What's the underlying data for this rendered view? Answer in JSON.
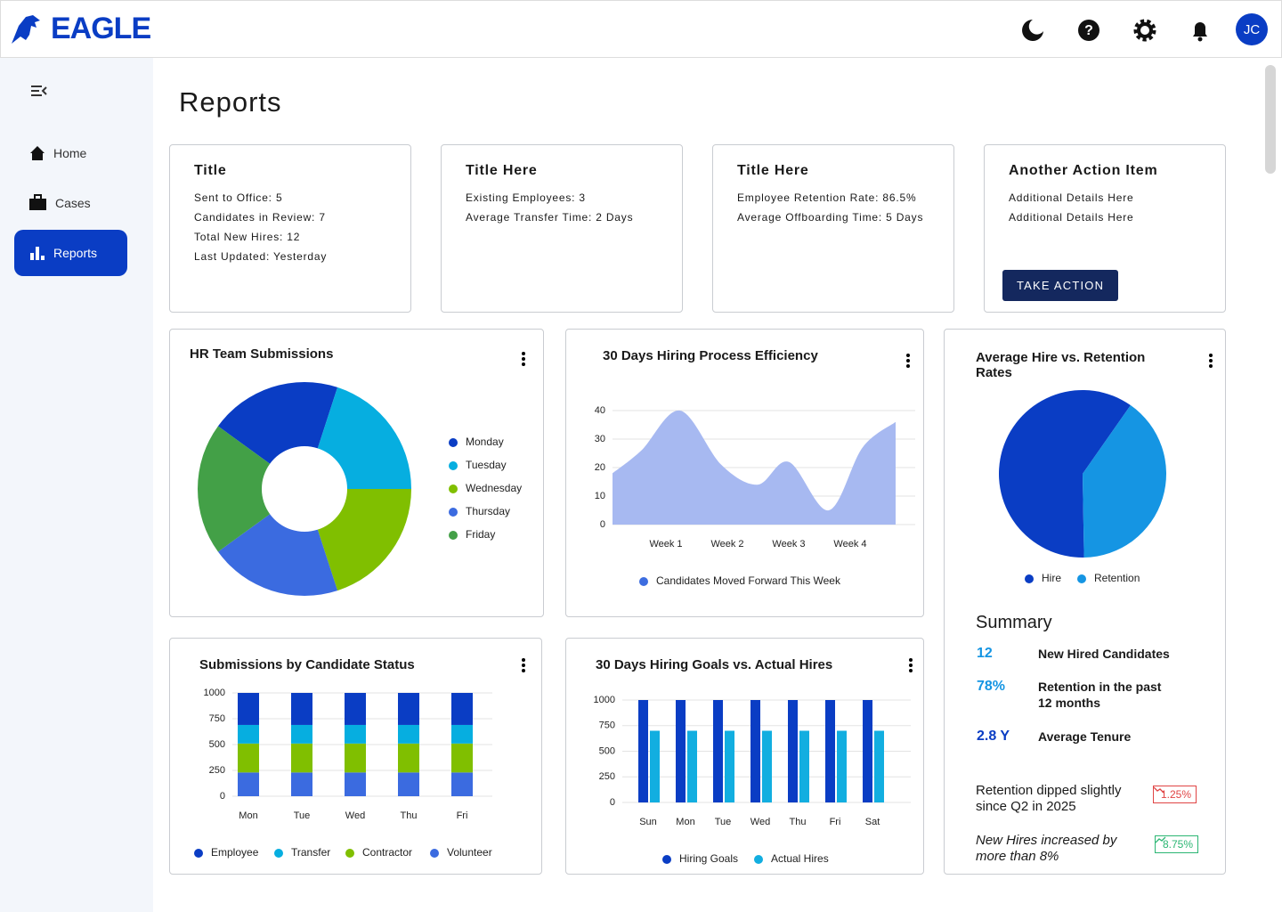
{
  "header": {
    "logo": "EAGLE",
    "avatar": "JC"
  },
  "nav": {
    "items": [
      "Home",
      "Cases",
      "Reports"
    ],
    "active": 2
  },
  "page_title": "Reports",
  "cards": [
    {
      "title": "Title",
      "lines": [
        "Sent to Office: 5",
        "Candidates in Review: 7",
        "Total New Hires: 12",
        "Last Updated: Yesterday"
      ]
    },
    {
      "title": "Title Here",
      "lines": [
        "Existing Employees: 3",
        "Average Transfer Time: 2 Days"
      ]
    },
    {
      "title": "Title Here",
      "lines": [
        "Employee Retention Rate: 86.5%",
        "Average Offboarding Time: 5 Days"
      ]
    },
    {
      "title": "Another Action Item",
      "lines": [
        "Additional Details Here",
        "Additional Details Here"
      ],
      "button": "TAKE ACTION"
    }
  ],
  "chart_data": [
    {
      "type": "donut",
      "title": "HR Team Submissions",
      "categories": [
        "Monday",
        "Tuesday",
        "Wednesday",
        "Thursday",
        "Friday"
      ],
      "values": [
        20,
        20,
        20,
        20,
        20
      ],
      "colors": [
        "#0a3dc4",
        "#06aee0",
        "#80bf00",
        "#3b6be0",
        "#43a047"
      ]
    },
    {
      "type": "area",
      "title": "30 Days Hiring Process Efficiency",
      "x": [
        0.13,
        0.6,
        1.23,
        1.9,
        2.49,
        3.0,
        3.65,
        4.2,
        4.74
      ],
      "xlim": [
        0.13,
        4.74
      ],
      "xticks": [
        {
          "value": 1,
          "label": "Week 1"
        },
        {
          "value": 2,
          "label": "Week 2"
        },
        {
          "value": 3,
          "label": "Week 3"
        },
        {
          "value": 4,
          "label": "Week 4"
        }
      ],
      "ylim": [
        0,
        40
      ],
      "yticks": [
        0,
        10,
        20,
        30,
        40
      ],
      "grid": true,
      "series": [
        {
          "name": "Candidates Moved Forward This Week",
          "color": "#a7b9f1",
          "marker_color": "#3d6de0",
          "values": [
            18,
            26,
            40,
            21,
            14,
            22,
            5,
            27,
            36
          ]
        }
      ]
    },
    {
      "type": "pie",
      "title": "Average Hire vs. Retention Rates",
      "categories": [
        "Hire",
        "Retention"
      ],
      "values": [
        60,
        40
      ],
      "colors": [
        "#0a3dc4",
        "#1595e3"
      ]
    },
    {
      "type": "stacked_bar",
      "title": "Submissions by Candidate Status",
      "categories": [
        "Mon",
        "Tue",
        "Wed",
        "Thu",
        "Fri"
      ],
      "ylim": [
        0,
        1000
      ],
      "yticks": [
        0,
        250,
        500,
        750,
        1000
      ],
      "grid": true,
      "series": [
        {
          "name": "Employee",
          "color": "#0a3dc4",
          "values": [
            310,
            310,
            310,
            310,
            310
          ]
        },
        {
          "name": "Transfer",
          "color": "#06aee0",
          "values": [
            180,
            180,
            180,
            180,
            180
          ]
        },
        {
          "name": "Contractor",
          "color": "#80bf00",
          "values": [
            280,
            280,
            280,
            280,
            280
          ]
        },
        {
          "name": "Volunteer",
          "color": "#3b6be0",
          "values": [
            230,
            230,
            230,
            230,
            230
          ]
        }
      ]
    },
    {
      "type": "bar",
      "title": "30 Days Hiring Goals vs. Actual Hires",
      "categories": [
        "Sun",
        "Mon",
        "Tue",
        "Wed",
        "Thu",
        "Fri",
        "Sat"
      ],
      "ylim": [
        0,
        1000
      ],
      "yticks": [
        0,
        250,
        500,
        750,
        1000
      ],
      "grid": true,
      "series": [
        {
          "name": "Hiring Goals",
          "color": "#0a3dc4",
          "values": [
            1000,
            1000,
            1000,
            1000,
            1000,
            1000,
            1000
          ]
        },
        {
          "name": "Actual Hires",
          "color": "#12aee0",
          "values": [
            700,
            700,
            700,
            700,
            700,
            700,
            700
          ]
        }
      ]
    }
  ],
  "summary": {
    "title": "Summary",
    "stats": [
      {
        "value": "12",
        "label": "New Hired Candidates"
      },
      {
        "value": "78%",
        "label": "Retention in the past 12 months"
      },
      {
        "value": "2.8 Y",
        "label": "Average Tenure"
      }
    ],
    "notes": [
      {
        "text": "Retention dipped slightly since Q2 in 2025",
        "badge": "1.25%",
        "trend": "down"
      },
      {
        "text": "New Hires increased by more than 8%",
        "badge": "8.75%",
        "trend": "up"
      }
    ]
  }
}
